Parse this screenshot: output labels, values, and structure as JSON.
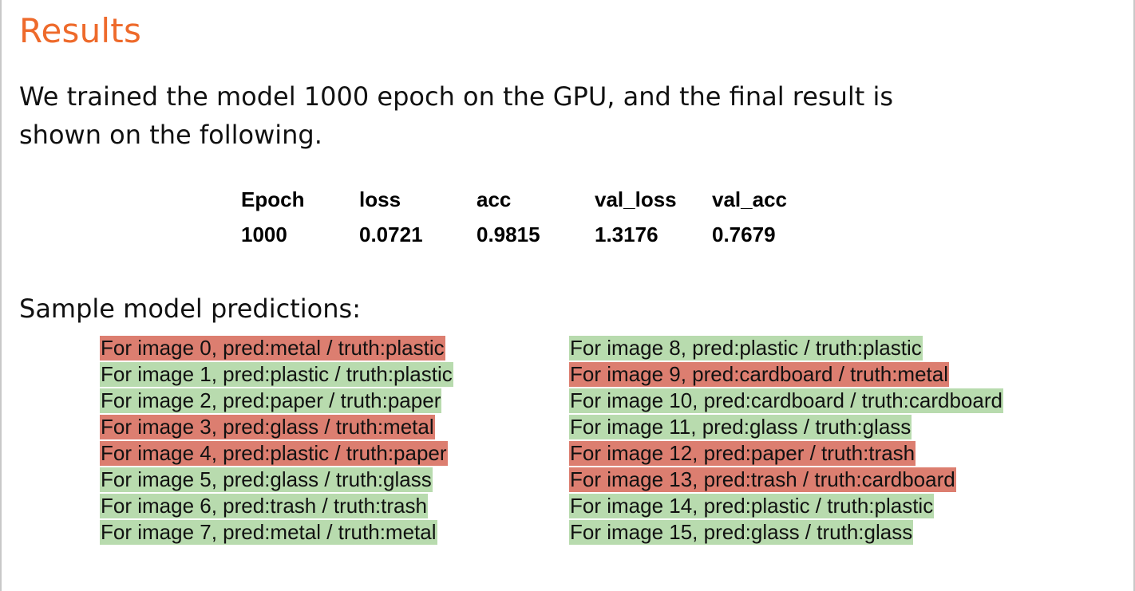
{
  "title": "Results",
  "intro": "We trained the model 1000 epoch on the GPU, and the final result is shown on the following.",
  "metrics": {
    "headers": [
      "Epoch",
      "loss",
      "acc",
      "val_loss",
      "val_acc"
    ],
    "values": [
      "1000",
      "0.0721",
      "0.9815",
      "1.3176",
      "0.7679"
    ]
  },
  "predictions_heading": "Sample model predictions:",
  "colors": {
    "title": "#ee6a2b",
    "wrong": "#dc7e70",
    "correct": "#b8dbae"
  },
  "predictions": {
    "left": [
      {
        "text": "For image 0, pred:metal / truth:plastic",
        "correct": false
      },
      {
        "text": "For image 1, pred:plastic / truth:plastic",
        "correct": true
      },
      {
        "text": "For image 2, pred:paper / truth:paper",
        "correct": true
      },
      {
        "text": "For image 3, pred:glass / truth:metal",
        "correct": false
      },
      {
        "text": "For image 4, pred:plastic / truth:paper",
        "correct": false
      },
      {
        "text": "For image 5, pred:glass / truth:glass",
        "correct": true
      },
      {
        "text": "For image 6, pred:trash / truth:trash",
        "correct": true
      },
      {
        "text": "For image 7, pred:metal / truth:metal",
        "correct": true
      }
    ],
    "right": [
      {
        "text": "For image 8, pred:plastic / truth:plastic",
        "correct": true
      },
      {
        "text": "For image 9, pred:cardboard / truth:metal",
        "correct": false
      },
      {
        "text": "For image 10, pred:cardboard / truth:cardboard",
        "correct": true
      },
      {
        "text": "For image 11, pred:glass / truth:glass",
        "correct": true
      },
      {
        "text": "For image 12, pred:paper / truth:trash",
        "correct": false
      },
      {
        "text": "For image 13, pred:trash / truth:cardboard",
        "correct": false
      },
      {
        "text": "For image 14, pred:plastic / truth:plastic",
        "correct": true
      },
      {
        "text": "For image 15, pred:glass / truth:glass",
        "correct": true
      }
    ]
  }
}
